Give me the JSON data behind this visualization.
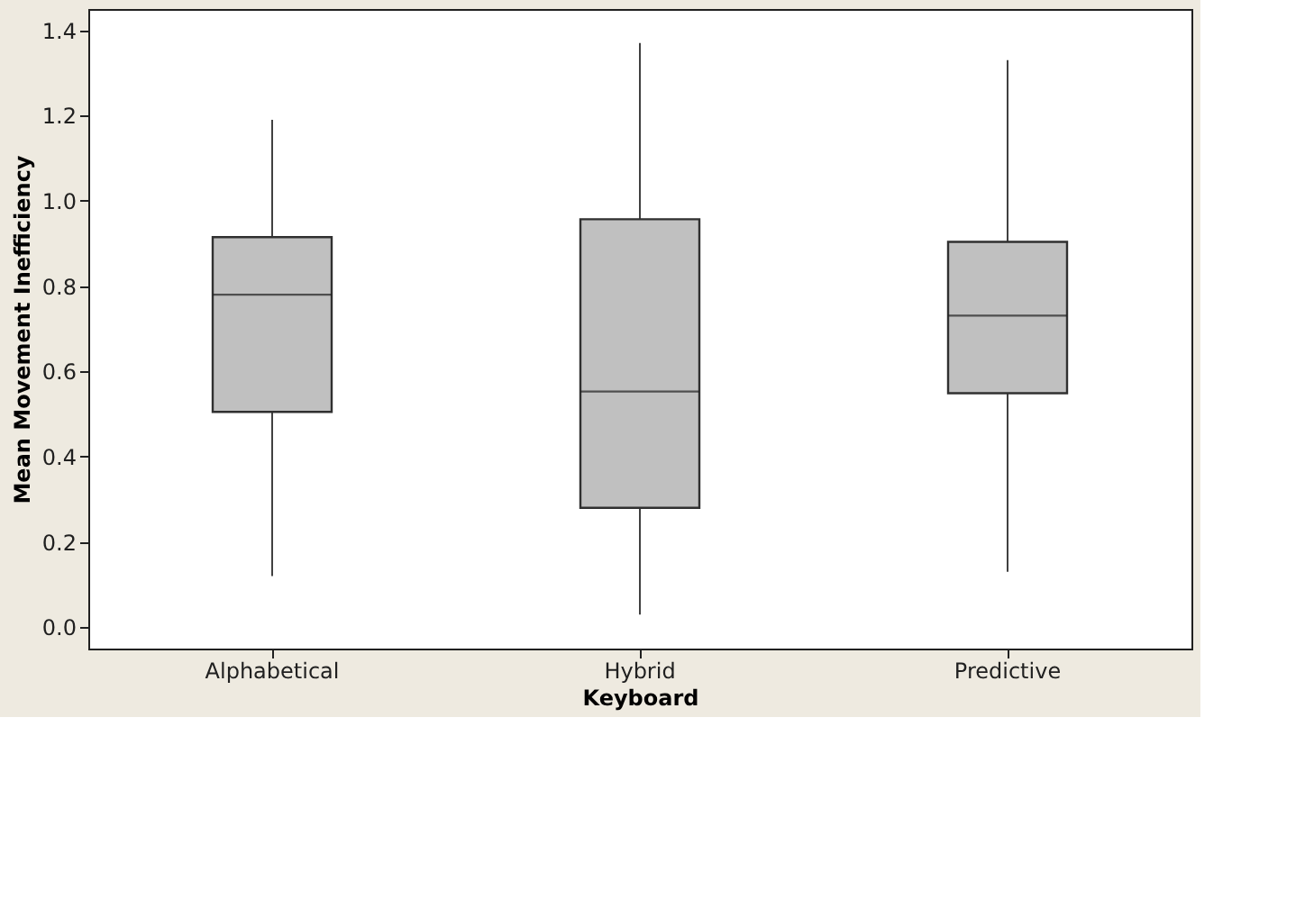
{
  "chart_data": {
    "type": "box",
    "xlabel": "Keyboard",
    "ylabel": "Mean Movement Inefficiency",
    "categories": [
      "Alphabetical",
      "Hybrid",
      "Predictive"
    ],
    "boxes": [
      {
        "low": 0.12,
        "q1": 0.505,
        "median": 0.78,
        "q3": 0.915,
        "high": 1.19
      },
      {
        "low": 0.03,
        "q1": 0.28,
        "median": 0.553,
        "q3": 0.957,
        "high": 1.37
      },
      {
        "low": 0.13,
        "q1": 0.549,
        "median": 0.731,
        "q3": 0.904,
        "high": 1.33
      }
    ],
    "color": "#c0c0c0",
    "grid": false,
    "ylim": [
      -0.05,
      1.45
    ],
    "yticks": [
      {
        "value": 0,
        "label": "0.0"
      },
      {
        "value": 0.2,
        "label": "0.2"
      },
      {
        "value": 0.4,
        "label": "0.4"
      },
      {
        "value": 0.6,
        "label": "0.6"
      },
      {
        "value": 0.8,
        "label": "0.8"
      },
      {
        "value": 1,
        "label": "1.0"
      },
      {
        "value": 1.2,
        "label": "1.2"
      },
      {
        "value": 1.4,
        "label": "1.4"
      }
    ]
  }
}
